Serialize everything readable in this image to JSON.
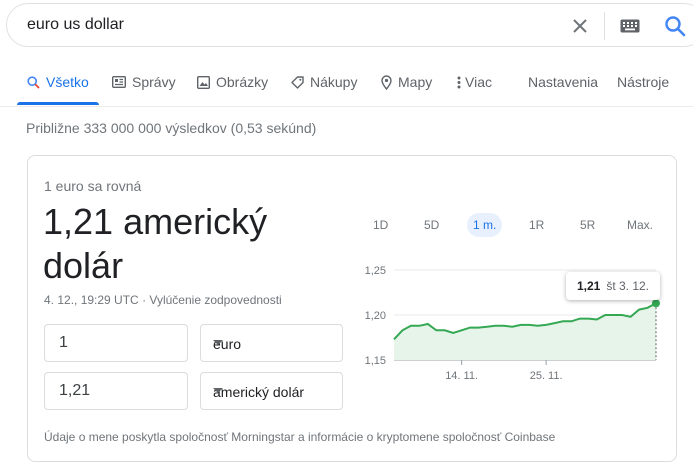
{
  "search": {
    "query": "euro us dollar"
  },
  "tabs": [
    {
      "label": "Všetko",
      "icon": "search-icon",
      "active": true
    },
    {
      "label": "Správy",
      "icon": "news-icon"
    },
    {
      "label": "Obrázky",
      "icon": "image-icon"
    },
    {
      "label": "Nákupy",
      "icon": "tag-icon"
    },
    {
      "label": "Mapy",
      "icon": "location-pin-icon"
    },
    {
      "label": "Viac",
      "icon": "more-vert-icon"
    },
    {
      "label": "Nastavenia"
    },
    {
      "label": "Nástroje"
    }
  ],
  "results_stats": "Približne 333 000 000 výsledkov (0,53 sekúnd)",
  "converter": {
    "equals_label": "1 euro sa rovná",
    "result_value": "1,21 americký dolár",
    "timestamp": "4. 12., 19:29 UTC",
    "separator": "·",
    "disclaimer": "Vylúčenie zodpovednosti",
    "from_amount": "1",
    "from_currency": "euro",
    "to_amount": "1,21",
    "to_currency": "americký dolár",
    "ranges": [
      "1D",
      "5D",
      "1 m.",
      "1R",
      "5R",
      "Max."
    ],
    "active_range": "1 m.",
    "tooltip_value": "1,21",
    "tooltip_date": "št 3. 12.",
    "footer": "Údaje o mene poskytla spoločnosť Morningstar a informácie o kryptomene spoločnosť Coinbase"
  },
  "colors": {
    "accent": "#1a73e8",
    "line": "#34a853",
    "area": "#e6f4ea"
  },
  "chart_data": {
    "type": "area",
    "ylim": [
      1.15,
      1.25
    ],
    "y_ticks": [
      "1,25",
      "1,20",
      "1,15"
    ],
    "x_ticks": [
      "14. 11.",
      "25. 11."
    ],
    "x_tick_index": [
      8,
      18
    ],
    "series": [
      {
        "values": [
          1.173,
          1.183,
          1.188,
          1.188,
          1.19,
          1.183,
          1.183,
          1.18,
          1.183,
          1.186,
          1.186,
          1.187,
          1.188,
          1.188,
          1.187,
          1.189,
          1.189,
          1.188,
          1.189,
          1.191,
          1.193,
          1.193,
          1.196,
          1.196,
          1.195,
          1.2,
          1.2,
          1.2,
          1.198,
          1.206,
          1.208,
          1.213
        ]
      }
    ]
  }
}
